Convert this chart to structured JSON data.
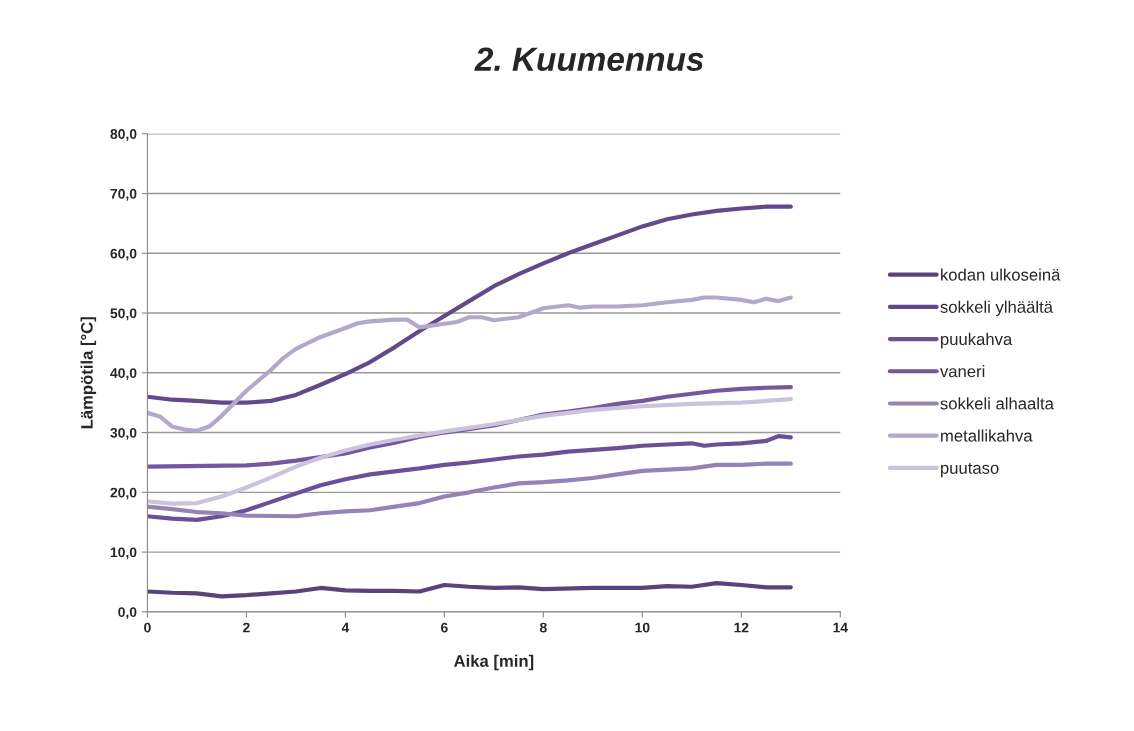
{
  "chart_data": {
    "type": "line",
    "title": "2. Kuumennus",
    "xlabel": "Aika [min]",
    "ylabel": "Lämpötila [°C]",
    "xlim": [
      0,
      14
    ],
    "xticks": [
      0,
      2,
      4,
      6,
      8,
      10,
      12,
      14
    ],
    "ylim": [
      0,
      80
    ],
    "yticks": [
      {
        "value": 0,
        "label": "0,0"
      },
      {
        "value": 10,
        "label": "10,0"
      },
      {
        "value": 20,
        "label": "20,0"
      },
      {
        "value": 30,
        "label": "30,0"
      },
      {
        "value": 40,
        "label": "40,0"
      },
      {
        "value": 50,
        "label": "50,0"
      },
      {
        "value": 60,
        "label": "60,0"
      },
      {
        "value": 70,
        "label": "70,0"
      },
      {
        "value": 80,
        "label": "80,0"
      }
    ],
    "grid": "y",
    "legend": "right",
    "marker": "none",
    "line_style": "solid",
    "series": [
      {
        "name": "kodan ulkoseinä",
        "color": "#5a4378",
        "x": [
          0,
          0.5,
          1,
          1.5,
          2,
          2.5,
          3,
          3.5,
          4,
          4.5,
          5,
          5.5,
          6,
          6.5,
          7,
          7.5,
          8,
          9,
          10,
          10.5,
          11,
          11.5,
          12,
          12.5,
          13
        ],
        "values": [
          3.4,
          3.2,
          3.1,
          2.6,
          2.8,
          3.1,
          3.4,
          4,
          3.6,
          3.5,
          3.5,
          3.4,
          4.5,
          4.2,
          4,
          4.1,
          3.8,
          4,
          4,
          4.3,
          4.2,
          4.8,
          4.5,
          4.1,
          4.1
        ]
      },
      {
        "name": "sokkeli ylhäältä",
        "color": "#624a8a",
        "x": [
          0,
          0.5,
          1,
          1.5,
          2,
          2.5,
          3,
          3.5,
          4,
          4.5,
          5,
          5.5,
          6,
          6.5,
          7,
          7.5,
          8,
          8.5,
          9,
          9.5,
          10,
          10.5,
          11,
          11.5,
          12,
          12.5,
          13
        ],
        "values": [
          36,
          35.5,
          35.3,
          35,
          35,
          35.3,
          36.3,
          38,
          39.8,
          41.8,
          44.3,
          47,
          49.5,
          52,
          54.5,
          56.5,
          58.3,
          60,
          61.5,
          63,
          64.5,
          65.7,
          66.5,
          67.1,
          67.5,
          67.8,
          67.8
        ]
      },
      {
        "name": "puukahva",
        "color": "#6a5096",
        "x": [
          0,
          0.5,
          1,
          1.5,
          2,
          2.5,
          3,
          3.5,
          4,
          4.5,
          5,
          5.5,
          6,
          6.5,
          7,
          7.5,
          8,
          8.5,
          9,
          9.5,
          10,
          10.5,
          11,
          11.25,
          11.5,
          12,
          12.5,
          12.75,
          13
        ],
        "values": [
          16,
          15.6,
          15.4,
          16,
          17,
          18.4,
          19.8,
          21.2,
          22.2,
          23,
          23.5,
          24,
          24.6,
          25,
          25.5,
          26,
          26.3,
          26.8,
          27.1,
          27.4,
          27.8,
          28,
          28.2,
          27.8,
          28,
          28.2,
          28.6,
          29.4,
          29.2
        ]
      },
      {
        "name": "vaneri",
        "color": "#7358a0",
        "x": [
          0,
          2,
          2.5,
          3,
          4,
          4.5,
          5,
          5.5,
          6,
          7,
          8,
          8.5,
          9,
          9.5,
          10,
          10.5,
          11,
          11.5,
          12,
          12.5,
          13
        ],
        "values": [
          24.3,
          24.5,
          24.8,
          25.3,
          26.5,
          27.5,
          28.3,
          29.3,
          30,
          31.2,
          33,
          33.5,
          34.1,
          34.8,
          35.3,
          36,
          36.5,
          37,
          37.3,
          37.5,
          37.6
        ]
      },
      {
        "name": "sokkeli alhaalta",
        "color": "#9483b5",
        "x": [
          0,
          0.5,
          1,
          1.5,
          2,
          3,
          3.5,
          4,
          4.5,
          5,
          5.5,
          6,
          6.5,
          7,
          7.5,
          8,
          8.5,
          9,
          9.5,
          10,
          10.5,
          11,
          11.5,
          12,
          12.5,
          13
        ],
        "values": [
          17.6,
          17.2,
          16.7,
          16.5,
          16.1,
          16,
          16.5,
          16.8,
          17,
          17.6,
          18.2,
          19.3,
          20,
          20.8,
          21.5,
          21.7,
          22,
          22.4,
          23,
          23.6,
          23.8,
          24,
          24.6,
          24.6,
          24.8,
          24.8
        ]
      },
      {
        "name": "metallikahva",
        "color": "#b3a8cb",
        "x": [
          0,
          0.25,
          0.5,
          0.75,
          1,
          1.25,
          1.5,
          2,
          2.5,
          2.75,
          3,
          3.5,
          4,
          4.25,
          4.5,
          5,
          5.25,
          5.5,
          6,
          6.25,
          6.5,
          6.75,
          7,
          7.5,
          8,
          8.5,
          8.75,
          9,
          9.5,
          10,
          10.5,
          11,
          11.25,
          11.5,
          12,
          12.25,
          12.5,
          12.75,
          13
        ],
        "values": [
          33.3,
          32.7,
          31,
          30.5,
          30.3,
          31,
          32.8,
          37,
          40.5,
          42.5,
          44,
          46,
          47.5,
          48.3,
          48.6,
          48.9,
          48.9,
          47.6,
          48.2,
          48.5,
          49.3,
          49.3,
          48.8,
          49.3,
          50.8,
          51.3,
          50.9,
          51.1,
          51.1,
          51.3,
          51.8,
          52.2,
          52.6,
          52.6,
          52.2,
          51.8,
          52.4,
          52,
          52.6
        ]
      },
      {
        "name": "puutaso",
        "color": "#cbc3dc",
        "x": [
          0,
          0.5,
          1,
          1.5,
          2,
          2.5,
          3,
          3.5,
          4,
          4.5,
          5,
          5.5,
          6,
          7,
          8,
          9,
          10,
          11,
          12,
          13
        ],
        "values": [
          18.5,
          18.1,
          18.2,
          19.3,
          20.8,
          22.5,
          24.3,
          25.8,
          27,
          28,
          28.8,
          29.5,
          30.2,
          31.4,
          32.8,
          33.8,
          34.4,
          34.8,
          35,
          35.6
        ]
      }
    ]
  }
}
